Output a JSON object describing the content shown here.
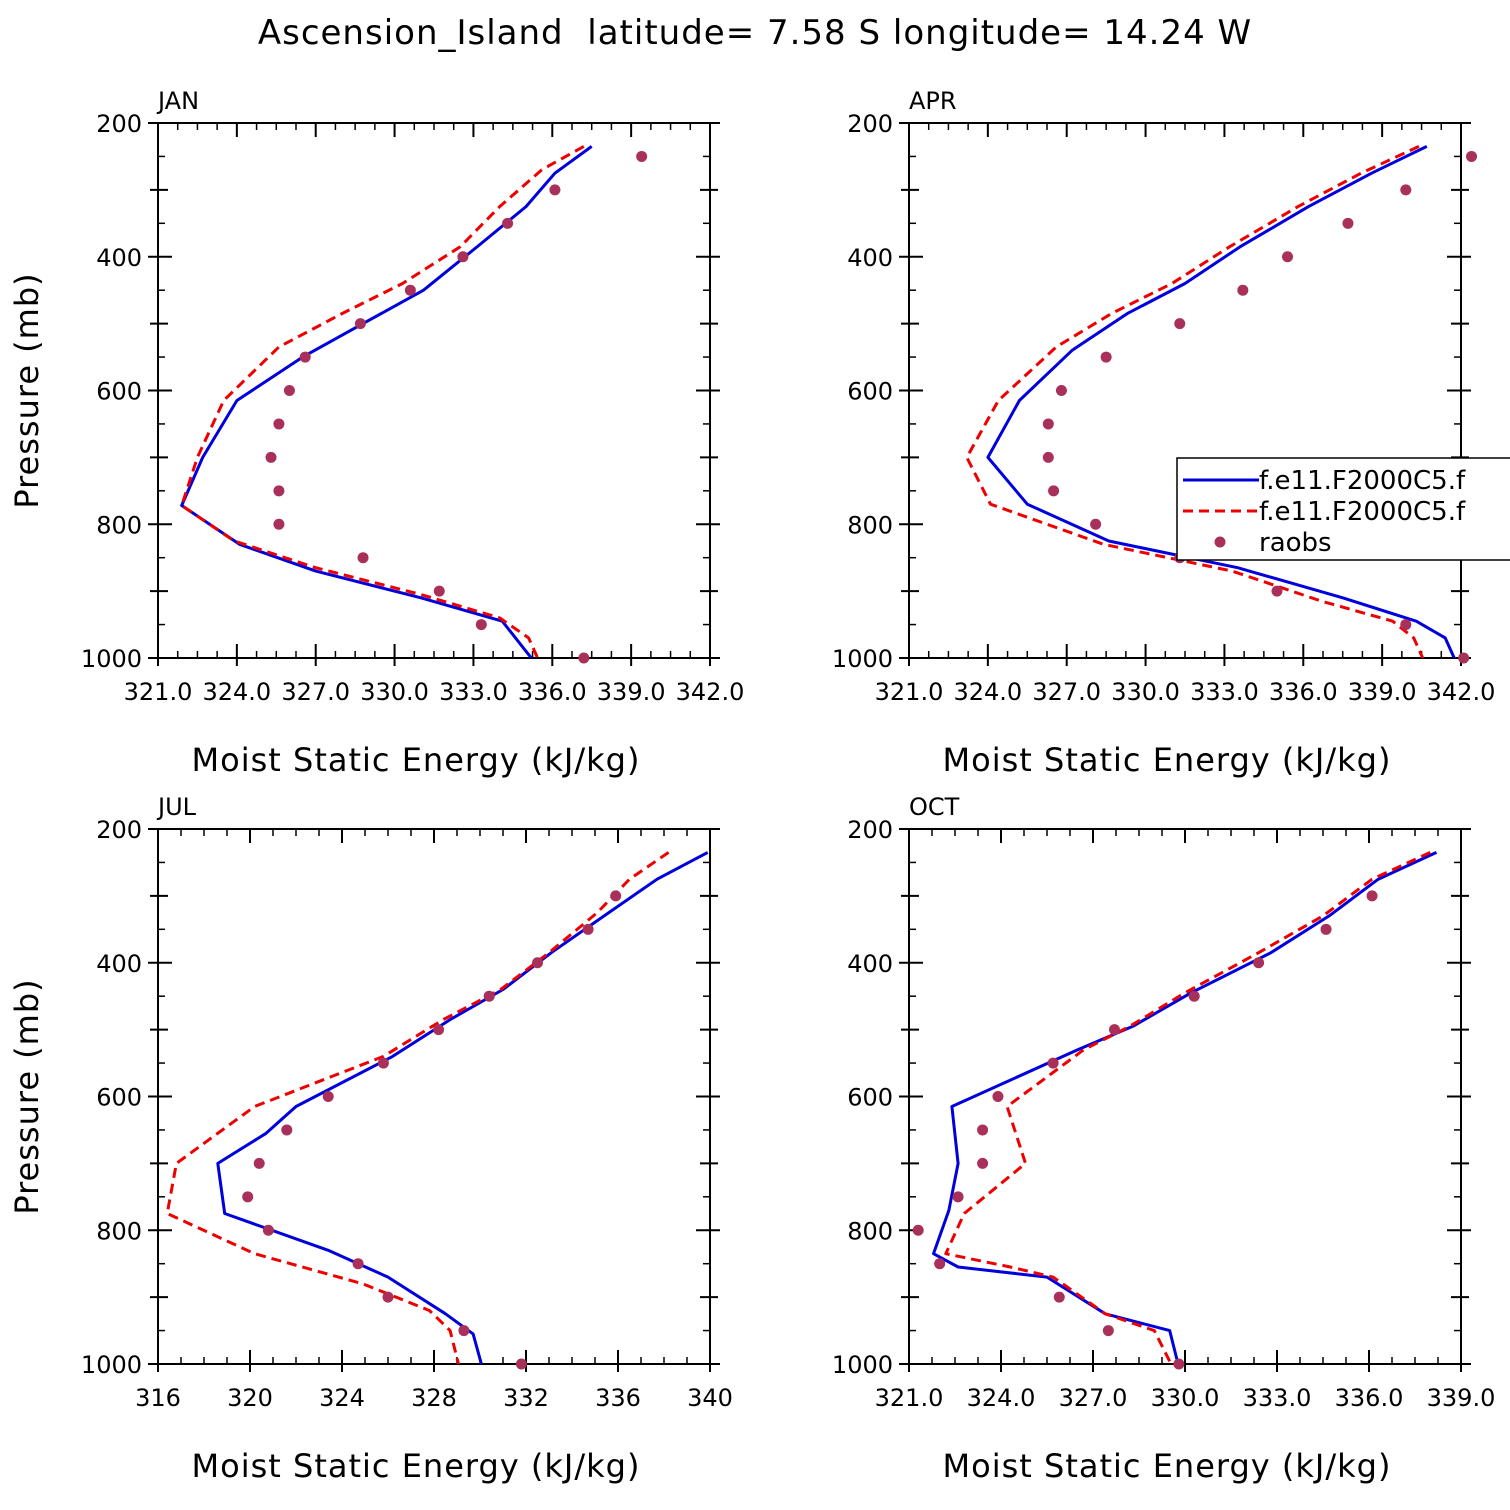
{
  "figure": {
    "title": "Ascension_Island  latitude= 7.58 S longitude= 14.24 W"
  },
  "legend": {
    "entries": [
      {
        "label": "f.e11.F2000C5.f",
        "style": "solid",
        "color": "#0000dd"
      },
      {
        "label": "f.e11.F2000C5.f",
        "style": "dashed",
        "color": "#ee0000"
      },
      {
        "label": "raobs",
        "style": "marker",
        "color": "#a8305a"
      }
    ]
  },
  "chart_data": [
    {
      "type": "line",
      "title": "JAN",
      "xlabel": "Moist Static Energy (kJ/kg)",
      "ylabel": "Pressure (mb)",
      "xlim": [
        321,
        342
      ],
      "ylim": [
        200,
        1000
      ],
      "y_inverted": true,
      "xticks": [
        321,
        324,
        327,
        330,
        333,
        336,
        339,
        342
      ],
      "xtick_labels": [
        "321.0",
        "324.0",
        "327.0",
        "330.0",
        "333.0",
        "336.0",
        "339.0",
        "342.0"
      ],
      "yticks": [
        200,
        400,
        600,
        800,
        1000
      ],
      "yticks_minor": [
        300,
        500,
        700,
        900
      ],
      "series": [
        {
          "name": "f.e11.F2000C5.f",
          "style": "solid",
          "color": "#0000dd",
          "x": [
            337.5,
            336.1,
            335.0,
            333.3,
            331.1,
            328.8,
            326.5,
            324.0,
            322.7,
            321.9,
            324.1,
            327.0,
            331.0,
            334.1,
            334.6,
            335.3
          ],
          "y": [
            235,
            275,
            325,
            380,
            450,
            500,
            550,
            615,
            700,
            772,
            830,
            870,
            910,
            945,
            970,
            1005
          ]
        },
        {
          "name": "f.e11.F2000C5.f",
          "style": "dashed",
          "color": "#ee0000",
          "x": [
            337.2,
            335.6,
            334.0,
            332.5,
            330.3,
            328.0,
            325.6,
            323.5,
            322.5,
            321.9,
            323.9,
            327.0,
            331.0,
            334.0,
            335.1,
            335.5
          ],
          "y": [
            235,
            270,
            325,
            385,
            440,
            485,
            535,
            615,
            700,
            772,
            825,
            865,
            905,
            940,
            970,
            1005
          ]
        },
        {
          "name": "raobs",
          "style": "marker",
          "color": "#a8305a",
          "x": [
            339.4,
            336.1,
            334.3,
            332.6,
            330.6,
            328.7,
            326.6,
            326.0,
            325.6,
            325.3,
            325.6,
            325.6,
            328.8,
            331.7,
            333.3,
            337.2
          ],
          "y": [
            250,
            300,
            350,
            400,
            450,
            500,
            550,
            600,
            650,
            700,
            750,
            800,
            850,
            900,
            950,
            1000
          ]
        }
      ]
    },
    {
      "type": "line",
      "title": "APR",
      "xlabel": "Moist Static Energy (kJ/kg)",
      "ylabel": "",
      "xlim": [
        321,
        342
      ],
      "ylim": [
        200,
        1000
      ],
      "y_inverted": true,
      "xticks": [
        321,
        324,
        327,
        330,
        333,
        336,
        339,
        342
      ],
      "xtick_labels": [
        "321.0",
        "324.0",
        "327.0",
        "330.0",
        "333.0",
        "336.0",
        "339.0",
        "342.0"
      ],
      "yticks": [
        200,
        400,
        600,
        800,
        1000
      ],
      "yticks_minor": [
        300,
        500,
        700,
        900
      ],
      "series": [
        {
          "name": "f.e11.F2000C5.f",
          "style": "solid",
          "color": "#0000dd",
          "x": [
            340.7,
            338.6,
            336.2,
            333.6,
            331.5,
            329.3,
            327.2,
            325.2,
            324.0,
            325.5,
            328.6,
            333.5,
            337.5,
            340.3,
            341.4,
            341.8
          ],
          "y": [
            235,
            275,
            325,
            385,
            440,
            485,
            540,
            615,
            700,
            770,
            825,
            865,
            910,
            945,
            970,
            1005
          ]
        },
        {
          "name": "f.e11.F2000C5.f",
          "style": "dashed",
          "color": "#ee0000",
          "x": [
            340.4,
            338.2,
            335.8,
            333.2,
            331.0,
            328.7,
            326.6,
            324.4,
            323.2,
            324.1,
            328.4,
            333.3,
            336.7,
            339.4,
            340.2,
            340.6
          ],
          "y": [
            235,
            275,
            325,
            385,
            440,
            485,
            535,
            615,
            700,
            770,
            830,
            870,
            915,
            945,
            970,
            1005
          ]
        },
        {
          "name": "raobs",
          "style": "marker",
          "color": "#a8305a",
          "x": [
            342.4,
            339.9,
            337.7,
            335.4,
            333.7,
            331.3,
            328.5,
            326.8,
            326.3,
            326.3,
            326.5,
            328.1,
            331.3,
            335.0,
            339.9,
            342.1
          ],
          "y": [
            250,
            300,
            350,
            400,
            450,
            500,
            550,
            600,
            650,
            700,
            750,
            800,
            850,
            900,
            950,
            1000
          ]
        }
      ]
    },
    {
      "type": "line",
      "title": "JUL",
      "xlabel": "Moist Static Energy (kJ/kg)",
      "ylabel": "Pressure (mb)",
      "xlim": [
        316,
        340
      ],
      "ylim": [
        200,
        1000
      ],
      "y_inverted": true,
      "xticks": [
        316,
        320,
        324,
        328,
        332,
        336,
        340
      ],
      "xtick_labels": [
        "316",
        "320",
        "324",
        "328",
        "332",
        "336",
        "340"
      ],
      "yticks": [
        200,
        400,
        600,
        800,
        1000
      ],
      "yticks_minor": [
        300,
        500,
        700,
        900
      ],
      "series": [
        {
          "name": "f.e11.F2000C5.f",
          "style": "solid",
          "color": "#0000dd",
          "x": [
            339.9,
            337.7,
            335.6,
            333.1,
            331.0,
            328.7,
            326.2,
            322.0,
            320.7,
            318.6,
            318.9,
            323.4,
            326.0,
            328.5,
            329.7,
            330.1
          ],
          "y": [
            235,
            275,
            325,
            385,
            440,
            485,
            540,
            615,
            655,
            700,
            775,
            830,
            870,
            925,
            955,
            1005
          ]
        },
        {
          "name": "f.e11.F2000C5.f",
          "style": "dashed",
          "color": "#ee0000",
          "x": [
            338.2,
            336.5,
            335.1,
            333.0,
            330.9,
            328.4,
            325.8,
            320.2,
            318.4,
            316.8,
            316.4,
            320.2,
            324.9,
            327.8,
            328.7,
            329.1
          ],
          "y": [
            235,
            275,
            325,
            385,
            440,
            485,
            540,
            615,
            660,
            700,
            775,
            835,
            880,
            920,
            950,
            1005
          ]
        },
        {
          "name": "raobs",
          "style": "marker",
          "color": "#a8305a",
          "x": [
            335.9,
            334.7,
            332.5,
            330.4,
            328.2,
            325.8,
            323.4,
            321.6,
            320.4,
            319.9,
            320.8,
            324.7,
            326.0,
            329.3,
            331.8
          ],
          "y": [
            300,
            350,
            400,
            450,
            500,
            550,
            600,
            650,
            700,
            750,
            800,
            850,
            900,
            950,
            1000
          ]
        }
      ]
    },
    {
      "type": "line",
      "title": "OCT",
      "xlabel": "Moist Static Energy (kJ/kg)",
      "ylabel": "",
      "xlim": [
        321,
        339
      ],
      "ylim": [
        200,
        1000
      ],
      "y_inverted": true,
      "xticks": [
        321,
        324,
        327,
        330,
        333,
        336,
        339
      ],
      "xtick_labels": [
        "321.0",
        "324.0",
        "327.0",
        "330.0",
        "333.0",
        "336.0",
        "339.0"
      ],
      "yticks": [
        200,
        400,
        600,
        800,
        1000
      ],
      "yticks_minor": [
        300,
        500,
        700,
        900
      ],
      "series": [
        {
          "name": "f.e11.F2000C5.f",
          "style": "solid",
          "color": "#0000dd",
          "x": [
            338.2,
            336.3,
            334.7,
            332.8,
            330.2,
            328.3,
            326.5,
            322.4,
            322.6,
            322.3,
            321.8,
            322.6,
            325.5,
            327.4,
            329.5,
            329.8
          ],
          "y": [
            235,
            275,
            330,
            385,
            445,
            495,
            530,
            615,
            700,
            770,
            835,
            855,
            870,
            925,
            950,
            1005
          ]
        },
        {
          "name": "f.e11.F2000C5.f",
          "style": "dashed",
          "color": "#ee0000",
          "x": [
            338.0,
            336.1,
            334.5,
            332.4,
            330.0,
            328.2,
            326.7,
            324.2,
            324.8,
            322.8,
            322.2,
            324.3,
            325.7,
            327.4,
            329.0,
            329.6
          ],
          "y": [
            235,
            275,
            330,
            385,
            445,
            495,
            530,
            615,
            700,
            775,
            835,
            855,
            870,
            925,
            950,
            1005
          ]
        },
        {
          "name": "raobs",
          "style": "marker",
          "color": "#a8305a",
          "x": [
            336.1,
            334.6,
            332.4,
            330.3,
            327.7,
            325.7,
            323.9,
            323.4,
            323.4,
            322.6,
            321.3,
            322.0,
            325.9,
            327.5,
            329.8
          ],
          "y": [
            300,
            350,
            400,
            450,
            500,
            550,
            600,
            650,
            700,
            750,
            800,
            850,
            900,
            950,
            1000
          ]
        }
      ]
    }
  ]
}
